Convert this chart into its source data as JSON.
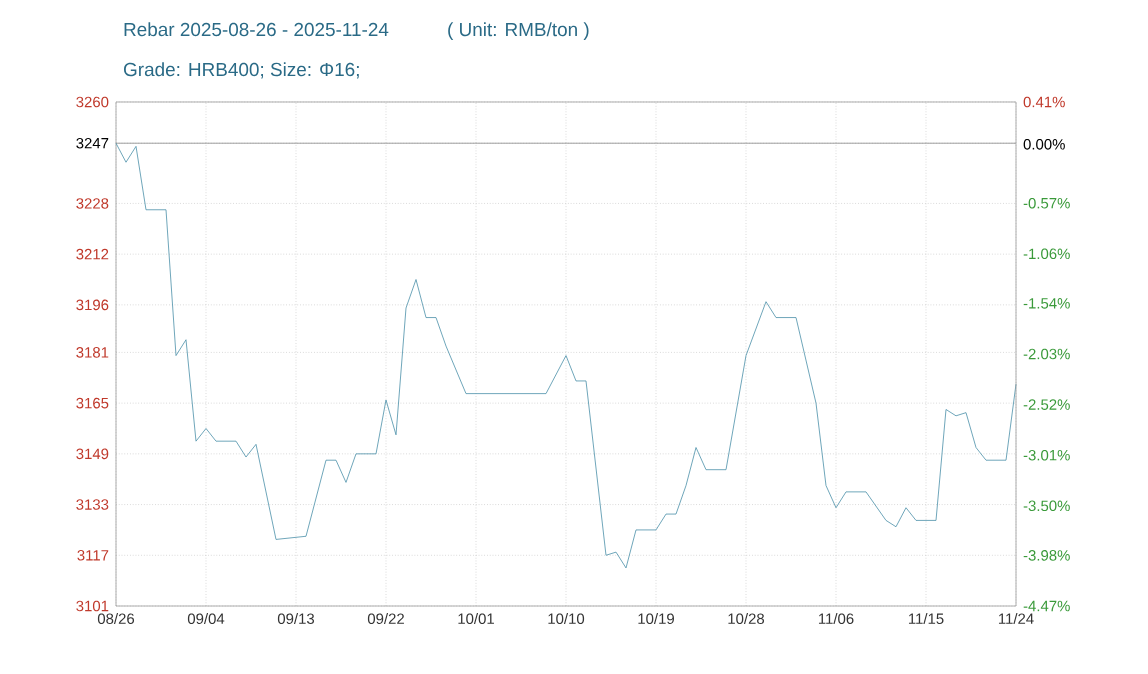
{
  "chart_data": {
    "type": "line",
    "title": "Rebar 2025-08-26 - 2025-11-24",
    "subtitle": "Grade: HRB400; Size: Φ16;",
    "annotations": [
      "( Unit: RMB/ton )"
    ],
    "x": [
      "2025-08-26",
      "2025-08-27",
      "2025-08-28",
      "2025-08-29",
      "2025-08-31",
      "2025-09-01",
      "2025-09-02",
      "2025-09-03",
      "2025-09-04",
      "2025-09-05",
      "2025-09-07",
      "2025-09-08",
      "2025-09-09",
      "2025-09-11",
      "2025-09-14",
      "2025-09-16",
      "2025-09-17",
      "2025-09-18",
      "2025-09-19",
      "2025-09-21",
      "2025-09-22",
      "2025-09-23",
      "2025-09-24",
      "2025-09-25",
      "2025-09-26",
      "2025-09-27",
      "2025-09-28",
      "2025-09-30",
      "2025-10-08",
      "2025-10-10",
      "2025-10-11",
      "2025-10-12",
      "2025-10-14",
      "2025-10-15",
      "2025-10-16",
      "2025-10-17",
      "2025-10-19",
      "2025-10-20",
      "2025-10-21",
      "2025-10-22",
      "2025-10-23",
      "2025-10-24",
      "2025-10-26",
      "2025-10-28",
      "2025-10-30",
      "2025-10-31",
      "2025-11-02",
      "2025-11-04",
      "2025-11-05",
      "2025-11-06",
      "2025-11-07",
      "2025-11-09",
      "2025-11-11",
      "2025-11-12",
      "2025-11-13",
      "2025-11-14",
      "2025-11-16",
      "2025-11-17",
      "2025-11-18",
      "2025-11-19",
      "2025-11-20",
      "2025-11-21",
      "2025-11-23",
      "2025-11-24"
    ],
    "series": [
      {
        "color": "#4a8fa8",
        "values": [
          3247,
          3241,
          3246,
          3226,
          3226,
          3180,
          3185,
          3153,
          3157,
          3153,
          3153,
          3148,
          3152,
          3122,
          3123,
          3147,
          3147,
          3140,
          3149,
          3149,
          3166,
          3155,
          3195,
          3204,
          3192,
          3192,
          3183,
          3168,
          3168,
          3180,
          3172,
          3172,
          3117,
          3118,
          3113,
          3125,
          3125,
          3130,
          3130,
          3139,
          3151,
          3144,
          3144,
          3180,
          3197,
          3192,
          3192,
          3165,
          3139,
          3132,
          3137,
          3137,
          3128,
          3126,
          3132,
          3128,
          3128,
          3163,
          3161,
          3162,
          3151,
          3147,
          3147,
          3171
        ]
      }
    ],
    "xlim": [
      "2025-08-26",
      "2025-11-24"
    ],
    "xticks": [
      {
        "value": "2025-08-26",
        "label": "08/26"
      },
      {
        "value": "2025-09-04",
        "label": "09/04"
      },
      {
        "value": "2025-09-13",
        "label": "09/13"
      },
      {
        "value": "2025-09-22",
        "label": "09/22"
      },
      {
        "value": "2025-10-01",
        "label": "10/01"
      },
      {
        "value": "2025-10-10",
        "label": "10/10"
      },
      {
        "value": "2025-10-19",
        "label": "10/19"
      },
      {
        "value": "2025-10-28",
        "label": "10/28"
      },
      {
        "value": "2025-11-06",
        "label": "11/06"
      },
      {
        "value": "2025-11-15",
        "label": "11/15"
      },
      {
        "value": "2025-11-24",
        "label": "11/24"
      }
    ],
    "ylim": [
      3101,
      3260
    ],
    "yticks": [
      3101,
      3117,
      3133,
      3149,
      3165,
      3181,
      3196,
      3212,
      3228,
      3247,
      3260
    ],
    "y2lim": [
      -4.47,
      0.41
    ],
    "y2ticks": [
      {
        "value": -4.47,
        "label": "-4.47%"
      },
      {
        "value": -3.98,
        "label": "-3.98%"
      },
      {
        "value": -3.5,
        "label": "-3.50%"
      },
      {
        "value": -3.01,
        "label": "-3.01%"
      },
      {
        "value": -2.52,
        "label": "-2.52%"
      },
      {
        "value": -2.03,
        "label": "-2.03%"
      },
      {
        "value": -1.54,
        "label": "-1.54%"
      },
      {
        "value": -1.06,
        "label": "-1.06%"
      },
      {
        "value": -0.57,
        "label": "-0.57%"
      },
      {
        "value": 0,
        "label": "0.00%"
      },
      {
        "value": 0.41,
        "label": "0.41%"
      }
    ],
    "ref_lines": [
      {
        "axis": "y",
        "value": 3247,
        "color": "#888888"
      }
    ],
    "grid": true,
    "marker": "none",
    "line_style": "solid"
  }
}
